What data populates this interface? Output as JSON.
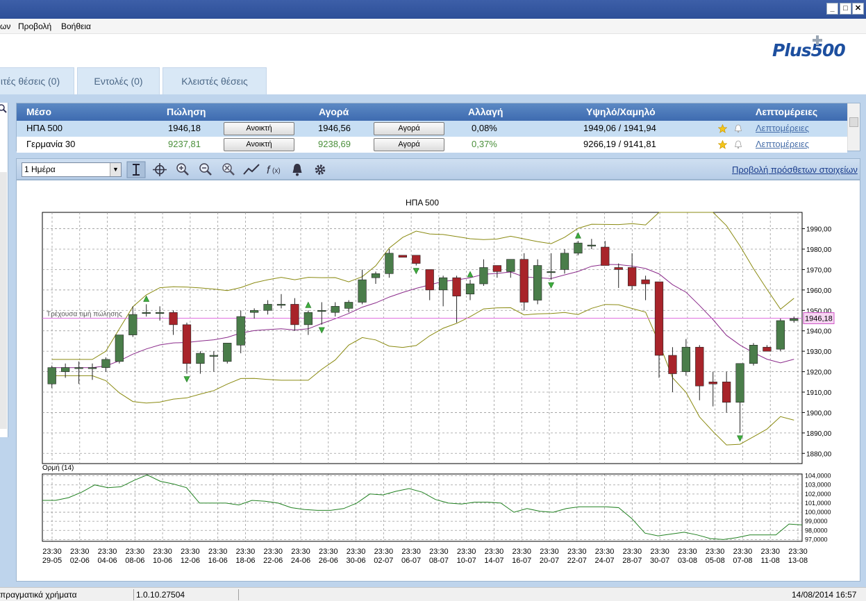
{
  "menu": {
    "items": [
      "ων",
      "Προβολή",
      "Βοήθεια"
    ]
  },
  "logo": "Plus500",
  "tabs": [
    {
      "label": "ιτές θέσεις (0)"
    },
    {
      "label": "Εντολές (0)"
    },
    {
      "label": "Κλειστές θέσεις"
    }
  ],
  "instruments": {
    "headers": {
      "instrument": "Μέσο",
      "sell": "Πώληση",
      "buy": "Αγορά",
      "change": "Αλλαγή",
      "highlow": "Υψηλό/Χαμηλό",
      "details": "Λεπτομέρειες"
    },
    "rows": [
      {
        "name": "ΗΠΑ 500",
        "sell": "1946,18",
        "sell_btn": "Ανοικτή",
        "buy": "1946,56",
        "buy_btn": "Αγορά",
        "change": "0,08%",
        "highlow": "1949,06 / 1941,94",
        "details": "Λεπτομέρειες"
      },
      {
        "name": "Γερμανία 30",
        "sell": "9237,81",
        "sell_btn": "Ανοικτή",
        "buy": "9238,69",
        "buy_btn": "Αγορά",
        "change": "0,37%",
        "highlow": "9266,19 / 9141,81",
        "details": "Λεπτομέρειες"
      }
    ]
  },
  "toolbar": {
    "period": "1 Ημέρα",
    "more_link": "Προβολή πρόσθετων στοιχείων",
    "icons": [
      "cursor-icon",
      "crosshair-icon",
      "zoom-in-icon",
      "zoom-out-icon",
      "zoom-reset-icon",
      "indicator-line-icon",
      "function-icon",
      "alert-bell-icon",
      "settings-gear-icon"
    ]
  },
  "status": {
    "left": "πραγματικά χρήματα",
    "version": "1.0.10.27504",
    "datetime": "14/08/2014 16:57"
  },
  "colors": {
    "up": "#4a7d4a",
    "down": "#a8242a",
    "ma": "#8a2a8a",
    "band": "#8a8a10",
    "momentum": "#208020",
    "current_price": "#e070e0"
  },
  "chart_data": [
    {
      "type": "candlestick",
      "title": "ΗΠΑ 500",
      "annotation": "Τρέχουσα τιμή πώλησης",
      "current_price": 1946.18,
      "current_price_label": "1946,18",
      "ylim": [
        1875,
        1998
      ],
      "yticks": [
        1880,
        1890,
        1900,
        1910,
        1920,
        1930,
        1940,
        1950,
        1960,
        1970,
        1980,
        1990
      ],
      "ytick_labels": [
        "1880,00",
        "1890,00",
        "1900,00",
        "1910,00",
        "1920,00",
        "1930,00",
        "1940,00",
        "1950,00",
        "1960,00",
        "1970,00",
        "1980,00",
        "1990,00"
      ],
      "x_time": "23:30",
      "x_dates": [
        "29-05",
        "02-06",
        "04-06",
        "08-06",
        "10-06",
        "12-06",
        "16-06",
        "18-06",
        "22-06",
        "24-06",
        "26-06",
        "30-06",
        "02-07",
        "06-07",
        "08-07",
        "10-07",
        "14-07",
        "16-07",
        "20-07",
        "22-07",
        "24-07",
        "28-07",
        "30-07",
        "03-08",
        "05-08",
        "07-08",
        "11-08",
        "13-08"
      ],
      "candles": [
        [
          1914,
          1923,
          1912,
          1922
        ],
        [
          1920,
          1924,
          1917,
          1922
        ],
        [
          1922,
          1925,
          1914,
          1922
        ],
        [
          1922,
          1924,
          1916,
          1922
        ],
        [
          1922,
          1927,
          1920,
          1926
        ],
        [
          1925,
          1938,
          1924,
          1938
        ],
        [
          1938,
          1952,
          1937,
          1948
        ],
        [
          1949,
          1953,
          1947,
          1949
        ],
        [
          1949,
          1952,
          1945,
          1949
        ],
        [
          1949,
          1950,
          1938,
          1943
        ],
        [
          1943,
          1944,
          1919,
          1924
        ],
        [
          1924,
          1930,
          1919,
          1929
        ],
        [
          1928,
          1930,
          1920,
          1928
        ],
        [
          1925,
          1934,
          1924,
          1934
        ],
        [
          1933,
          1950,
          1929,
          1947
        ],
        [
          1949,
          1951,
          1946,
          1950
        ],
        [
          1950,
          1955,
          1948,
          1953
        ],
        [
          1953,
          1958,
          1951,
          1953
        ],
        [
          1953,
          1956,
          1940,
          1943
        ],
        [
          1943,
          1950,
          1938,
          1949
        ],
        [
          1950,
          1954,
          1943,
          1950
        ],
        [
          1949,
          1954,
          1947,
          1952
        ],
        [
          1951,
          1955,
          1949,
          1954
        ],
        [
          1954,
          1970,
          1953,
          1965
        ],
        [
          1966,
          1969,
          1963,
          1968
        ],
        [
          1968,
          1980,
          1966,
          1978
        ],
        [
          1977,
          1977,
          1976,
          1976
        ],
        [
          1977,
          1977,
          1972,
          1973
        ],
        [
          1970,
          1970,
          1955,
          1960
        ],
        [
          1960,
          1967,
          1952,
          1966
        ],
        [
          1966,
          1967,
          1944,
          1957
        ],
        [
          1958,
          1965,
          1955,
          1963
        ],
        [
          1963,
          1975,
          1962,
          1971
        ],
        [
          1972,
          1972,
          1966,
          1969
        ],
        [
          1969,
          1975,
          1966,
          1975
        ],
        [
          1975,
          1978,
          1950,
          1954
        ],
        [
          1955,
          1975,
          1953,
          1972
        ],
        [
          1969,
          1978,
          1965,
          1969
        ],
        [
          1970,
          1980,
          1968,
          1978
        ],
        [
          1978,
          1984,
          1977,
          1983
        ],
        [
          1982,
          1985,
          1980,
          1982
        ],
        [
          1981,
          1984,
          1972,
          1972
        ],
        [
          1971,
          1973,
          1961,
          1970
        ],
        [
          1971,
          1978,
          1960,
          1962
        ],
        [
          1965,
          1967,
          1955,
          1963
        ],
        [
          1964,
          1964,
          1917,
          1928
        ],
        [
          1928,
          1932,
          1910,
          1919
        ],
        [
          1920,
          1936,
          1918,
          1932
        ],
        [
          1932,
          1933,
          1906,
          1913
        ],
        [
          1915,
          1920,
          1903,
          1914
        ],
        [
          1915,
          1920,
          1900,
          1905
        ],
        [
          1905,
          1923,
          1890,
          1924
        ],
        [
          1924,
          1934,
          1923,
          1933
        ],
        [
          1932,
          1933,
          1931,
          1930
        ],
        [
          1931,
          1946,
          1930,
          1945
        ],
        [
          1945,
          1947,
          1944,
          1946
        ]
      ],
      "up_markers": [
        7,
        19,
        39,
        31
      ],
      "down_markers": [
        10,
        20,
        27,
        37,
        51
      ]
    },
    {
      "type": "line",
      "title": "Ορμή (14)",
      "ylim": [
        96.8,
        104.2
      ],
      "yticks": [
        97,
        98,
        99,
        100,
        101,
        102,
        103,
        104
      ],
      "ytick_labels": [
        "97,0000",
        "98,0000",
        "99,0000",
        "100,0000",
        "101,0000",
        "102,0000",
        "103,0000",
        "104,0000"
      ],
      "values": [
        101.3,
        101.3,
        101.6,
        102.2,
        103.0,
        102.7,
        102.8,
        103.5,
        104.1,
        103.4,
        103.1,
        102.7,
        101.0,
        101.0,
        101.0,
        100.8,
        101.3,
        101.2,
        101.0,
        100.5,
        100.3,
        100.2,
        100.2,
        100.4,
        101.0,
        102.0,
        101.9,
        102.3,
        102.6,
        102.2,
        101.4,
        101.0,
        100.9,
        101.1,
        101.1,
        101.0,
        100.0,
        100.4,
        100.1,
        100.0,
        100.4,
        100.6,
        100.6,
        100.6,
        100.5,
        99.3,
        97.7,
        97.4,
        97.6,
        97.8,
        97.5,
        97.1,
        97.0,
        97.2,
        97.5,
        97.5,
        97.5,
        98.7,
        98.6
      ]
    }
  ]
}
